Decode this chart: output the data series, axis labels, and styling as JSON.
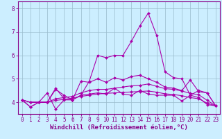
{
  "xlabel": "Windchill (Refroidissement éolien,°C)",
  "x": [
    0,
    1,
    2,
    3,
    4,
    5,
    6,
    7,
    8,
    9,
    10,
    11,
    12,
    13,
    14,
    15,
    16,
    17,
    18,
    19,
    20,
    21,
    22,
    23
  ],
  "lines": [
    [
      4.1,
      3.8,
      4.0,
      4.4,
      3.7,
      4.1,
      4.1,
      4.3,
      4.35,
      4.4,
      4.35,
      4.6,
      4.35,
      4.3,
      4.5,
      4.35,
      4.3,
      4.3,
      4.3,
      4.05,
      4.3,
      4.2,
      3.9,
      3.85
    ],
    [
      4.1,
      3.8,
      4.0,
      4.0,
      4.6,
      4.15,
      4.1,
      4.3,
      4.9,
      6.0,
      5.9,
      6.0,
      6.0,
      6.6,
      7.25,
      7.8,
      6.85,
      5.3,
      5.05,
      5.0,
      4.3,
      4.5,
      4.4,
      3.85
    ],
    [
      4.1,
      4.0,
      4.0,
      4.0,
      4.55,
      4.3,
      4.1,
      4.9,
      4.85,
      5.0,
      4.85,
      5.05,
      4.95,
      5.1,
      5.15,
      5.0,
      4.85,
      4.65,
      4.6,
      4.5,
      4.95,
      4.45,
      4.4,
      3.85
    ],
    [
      4.1,
      4.0,
      4.0,
      4.0,
      4.15,
      4.2,
      4.25,
      4.4,
      4.5,
      4.55,
      4.55,
      4.6,
      4.65,
      4.7,
      4.72,
      4.78,
      4.68,
      4.58,
      4.55,
      4.48,
      4.38,
      4.32,
      4.08,
      3.85
    ],
    [
      4.1,
      4.0,
      4.0,
      4.0,
      4.08,
      4.12,
      4.18,
      4.25,
      4.3,
      4.35,
      4.38,
      4.4,
      4.42,
      4.44,
      4.46,
      4.48,
      4.43,
      4.36,
      4.33,
      4.28,
      4.2,
      4.15,
      3.96,
      3.85
    ]
  ],
  "line_color": "#aa00aa",
  "marker": "D",
  "markersize": 2.0,
  "linewidth": 0.8,
  "ylim": [
    3.5,
    8.3
  ],
  "yticks": [
    4,
    5,
    6,
    7,
    8
  ],
  "xticks": [
    0,
    1,
    2,
    3,
    4,
    5,
    6,
    7,
    8,
    9,
    10,
    11,
    12,
    13,
    14,
    15,
    16,
    17,
    18,
    19,
    20,
    21,
    22,
    23
  ],
  "bg_color": "#cceeff",
  "grid_color": "#99bbcc",
  "axis_color": "#880088",
  "xlabel_fontsize": 6.5,
  "tick_fontsize": 5.5,
  "spine_color": "#880088"
}
